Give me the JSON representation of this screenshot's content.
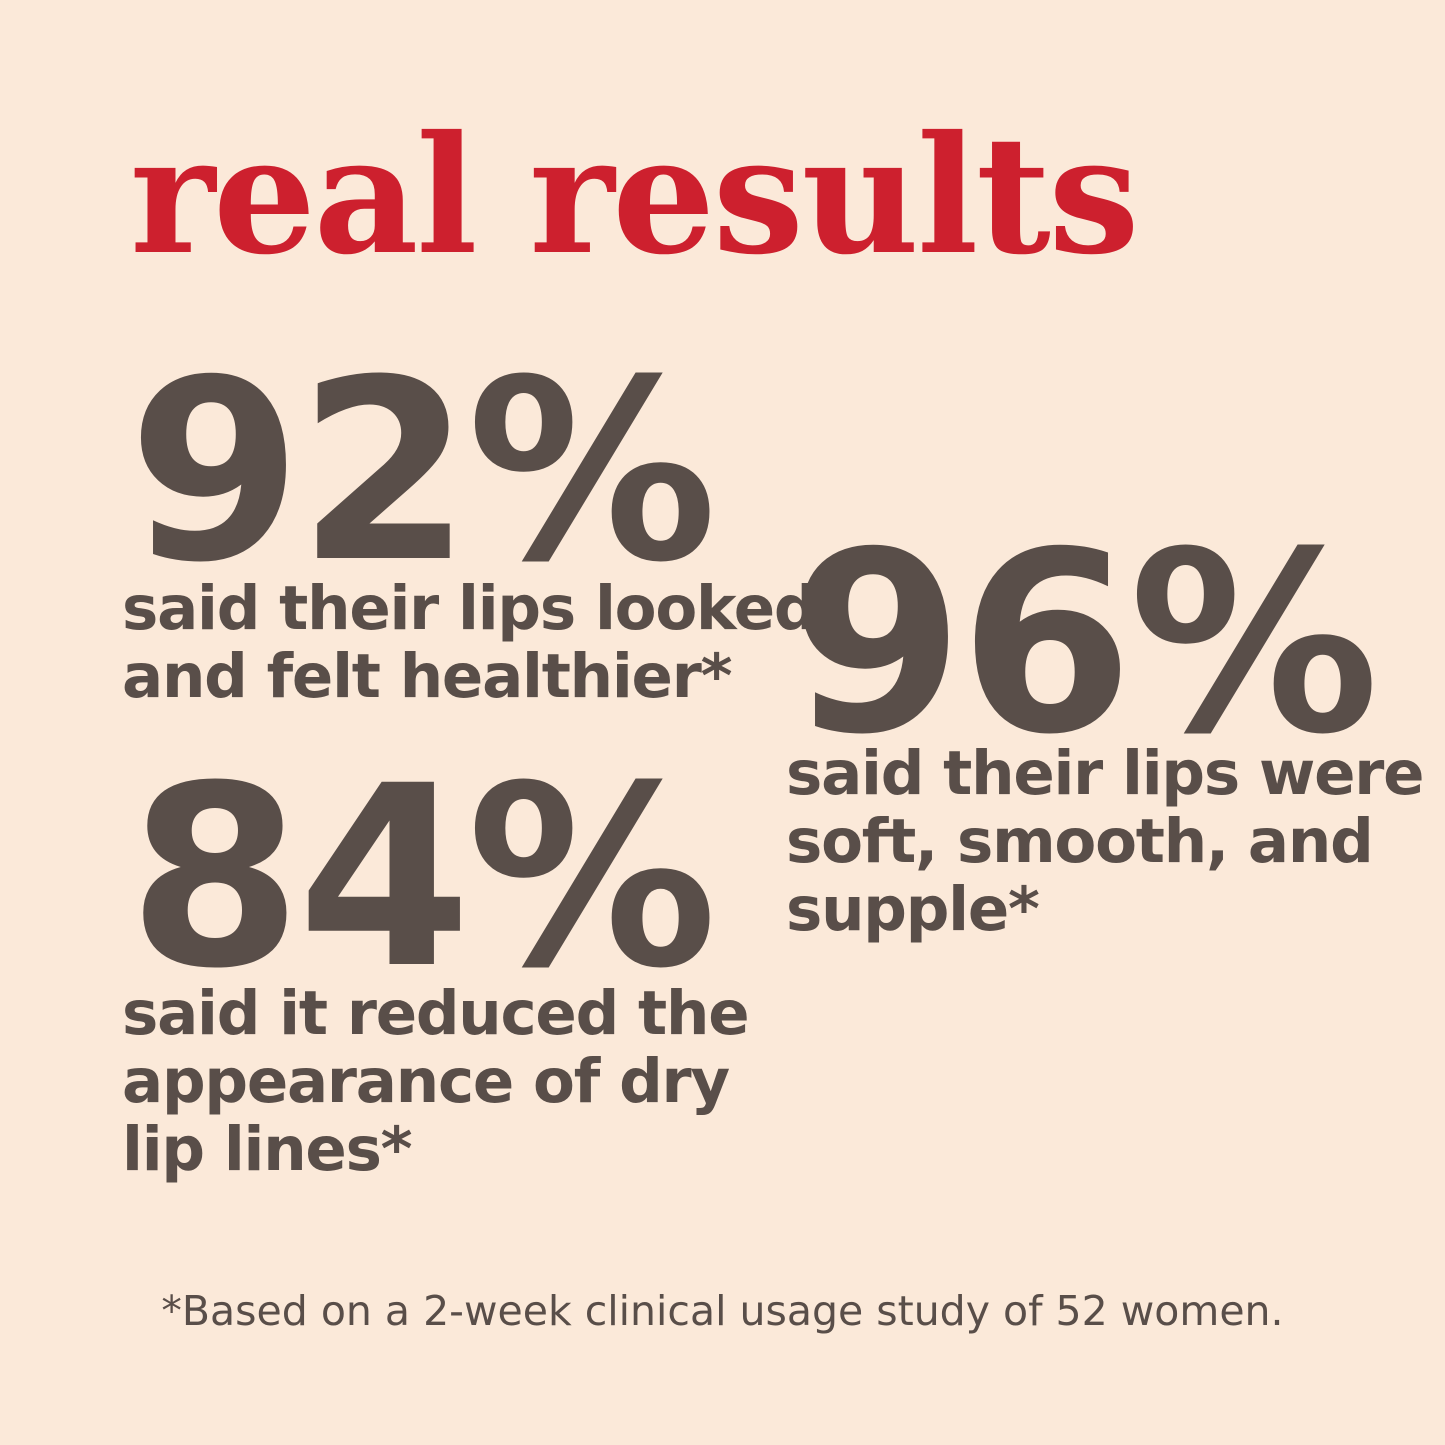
{
  "title": {
    "text": "real results"
  },
  "stats": [
    {
      "id": "healthier",
      "value": "92%",
      "caption": "said their lips looked\nand felt healthier*"
    },
    {
      "id": "dry-lip-lines",
      "value": "84%",
      "caption": "said it reduced the\nappearance of dry\nlip lines*"
    },
    {
      "id": "soft-smooth-supple",
      "value": "96%",
      "caption": "said their lips were\nsoft, smooth, and\nsupple*"
    }
  ],
  "footnote": {
    "text": "*Based on a 2-week clinical usage study of 52 women."
  },
  "colors": {
    "background": "#fbe9d9",
    "accent_red": "#cd202e",
    "text_dark": "#594e49"
  }
}
